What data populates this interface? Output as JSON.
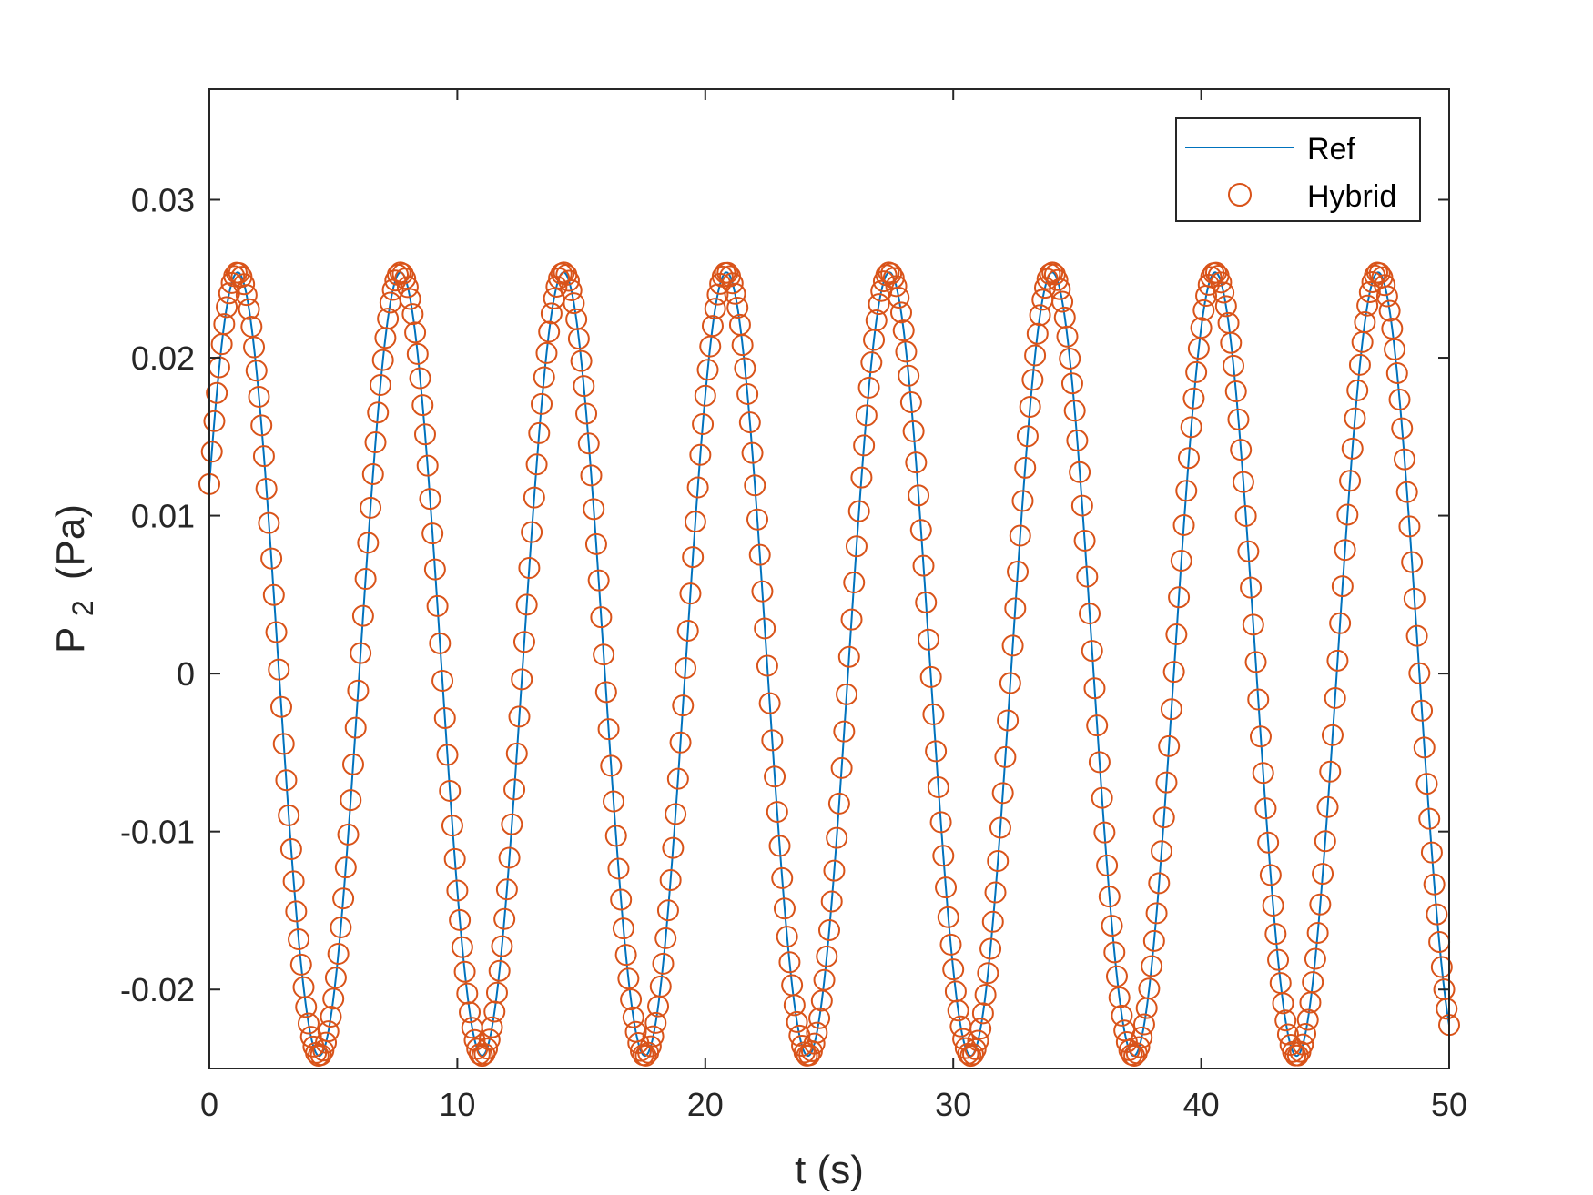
{
  "chart_data": {
    "type": "line",
    "title": "",
    "xlabel": "t (s)",
    "ylabel_main": "P",
    "ylabel_sub": "2",
    "ylabel_unit": "(Pa)",
    "xlim": [
      0,
      50
    ],
    "ylim": [
      -0.025,
      0.037
    ],
    "xticks": [
      0,
      10,
      20,
      30,
      40,
      50
    ],
    "xtick_labels": [
      "0",
      "10",
      "20",
      "30",
      "40",
      "50"
    ],
    "yticks": [
      -0.02,
      -0.01,
      0,
      0.01,
      0.02,
      0.03
    ],
    "ytick_labels": [
      "-0.02",
      "-0.01",
      "0",
      "0.01",
      "0.02",
      "0.03"
    ],
    "grid": false,
    "legend_position": "top-right",
    "series": [
      {
        "name": "Ref",
        "style": "line",
        "color": "#0072BD",
        "model": "sine",
        "amplitude": 0.0248,
        "offset": 0.0006,
        "period": 6.57,
        "y_at_t0": 0.012,
        "t_start": 0,
        "t_end": 50,
        "first_peak_t": 1.2,
        "first_trough_t": 4.5,
        "peak_value": 0.0254,
        "trough_value": -0.0242
      },
      {
        "name": "Hybrid",
        "style": "markers",
        "marker": "circle",
        "color": "#D95319",
        "sample_step": 0.1,
        "t_start": 0,
        "t_end": 50,
        "model": "same as Ref"
      }
    ]
  }
}
